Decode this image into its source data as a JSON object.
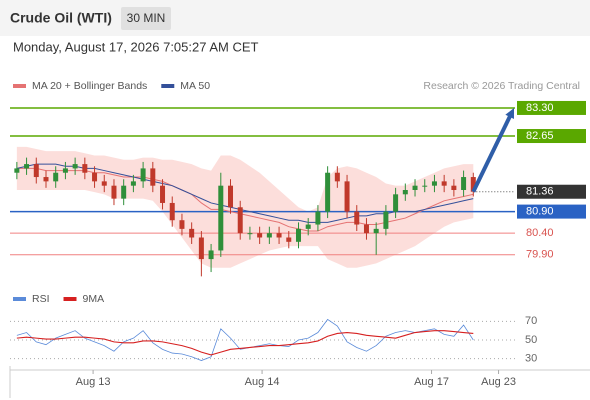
{
  "chart_data": {
    "type": "candlestick",
    "title": "Crude Oil (WTI)",
    "timeframe": "30 MIN",
    "timestamp": "Monday, August 17, 2026 7:05:27 AM CET",
    "credit": "Research © 2026 Trading Central",
    "xlim": [
      0,
      52
    ],
    "xticks": [
      {
        "value": 8.35,
        "label": "Aug 13"
      },
      {
        "value": 25.75,
        "label": "Aug 14"
      },
      {
        "value": 43.2,
        "label": "Aug 17"
      },
      {
        "value": 50.1,
        "label": "Aug 23"
      }
    ],
    "ylim": [
      79.2,
      83.6
    ],
    "up_color": "#2f8f3a",
    "down_color": "#c0392b",
    "candles": {
      "open": [
        81.8,
        81.9,
        82.0,
        81.7,
        81.6,
        81.8,
        81.9,
        82.0,
        81.8,
        81.6,
        81.5,
        81.2,
        81.5,
        81.6,
        81.9,
        81.5,
        81.1,
        80.7,
        80.5,
        80.3,
        79.8,
        80.0,
        81.5,
        81.0,
        80.4,
        80.4,
        80.3,
        80.4,
        80.3,
        80.2,
        80.5,
        80.6,
        80.9,
        81.8,
        81.6,
        80.9,
        80.6,
        80.4,
        80.5,
        80.9,
        81.3,
        81.4,
        81.5,
        81.5,
        81.6,
        81.5,
        81.4,
        81.7
      ],
      "high": [
        82.05,
        82.15,
        82.15,
        81.85,
        81.95,
        82.05,
        82.15,
        82.15,
        81.95,
        81.75,
        81.65,
        81.65,
        81.75,
        82.05,
        82.05,
        81.65,
        81.25,
        80.85,
        80.65,
        80.45,
        80.15,
        81.8,
        81.65,
        81.15,
        80.55,
        80.55,
        80.55,
        80.55,
        80.45,
        80.65,
        80.75,
        81.05,
        81.95,
        81.95,
        81.75,
        81.05,
        80.75,
        80.65,
        81.05,
        81.45,
        81.55,
        81.65,
        81.65,
        81.75,
        81.75,
        81.65,
        81.85,
        81.8
      ],
      "low": [
        81.65,
        81.75,
        81.55,
        81.45,
        81.45,
        81.65,
        81.75,
        81.65,
        81.45,
        81.35,
        81.05,
        81.05,
        81.35,
        81.45,
        81.35,
        80.95,
        80.55,
        80.35,
        80.15,
        79.4,
        79.5,
        79.85,
        80.85,
        80.25,
        80.25,
        80.15,
        80.15,
        80.15,
        80.05,
        80.05,
        80.35,
        80.45,
        80.75,
        81.45,
        80.75,
        80.45,
        80.25,
        79.9,
        80.35,
        80.75,
        81.15,
        81.25,
        81.35,
        81.35,
        81.35,
        81.25,
        81.25,
        81.25
      ],
      "close": [
        81.9,
        82.0,
        81.7,
        81.6,
        81.8,
        81.9,
        82.0,
        81.8,
        81.6,
        81.5,
        81.2,
        81.5,
        81.6,
        81.9,
        81.5,
        81.1,
        80.7,
        80.5,
        80.3,
        79.8,
        80.0,
        81.5,
        81.0,
        80.4,
        80.4,
        80.3,
        80.4,
        80.3,
        80.2,
        80.5,
        80.6,
        80.9,
        81.8,
        81.6,
        80.9,
        80.6,
        80.4,
        80.5,
        80.9,
        81.3,
        81.4,
        81.5,
        81.5,
        81.6,
        81.5,
        81.4,
        81.7,
        81.36
      ]
    },
    "series": [
      {
        "name": "MA 20 + Bollinger Bands",
        "color": "#e57373",
        "band_color": "#fbd3cf",
        "values": [
          81.9,
          81.9,
          81.9,
          81.85,
          81.85,
          81.85,
          81.85,
          81.85,
          81.8,
          81.8,
          81.75,
          81.7,
          81.7,
          81.7,
          81.65,
          81.6,
          81.5,
          81.4,
          81.3,
          81.1,
          80.95,
          80.95,
          80.9,
          80.85,
          80.8,
          80.75,
          80.7,
          80.65,
          80.55,
          80.5,
          80.45,
          80.45,
          80.55,
          80.6,
          80.65,
          80.65,
          80.6,
          80.6,
          80.65,
          80.7,
          80.75,
          80.85,
          80.95,
          81.05,
          81.15,
          81.2,
          81.25,
          81.3
        ],
        "upper": [
          82.4,
          82.4,
          82.35,
          82.3,
          82.3,
          82.3,
          82.3,
          82.25,
          82.2,
          82.2,
          82.15,
          82.1,
          82.1,
          82.15,
          82.15,
          82.1,
          82.1,
          82.05,
          82.0,
          81.9,
          81.85,
          82.2,
          82.2,
          82.1,
          81.95,
          81.8,
          81.6,
          81.4,
          81.2,
          81.0,
          80.9,
          81.0,
          81.7,
          81.9,
          81.95,
          81.9,
          81.8,
          81.7,
          81.55,
          81.5,
          81.5,
          81.6,
          81.7,
          81.8,
          81.9,
          81.95,
          82.0,
          82.0
        ],
        "lower": [
          81.4,
          81.4,
          81.4,
          81.4,
          81.4,
          81.4,
          81.4,
          81.4,
          81.35,
          81.3,
          81.2,
          81.2,
          81.2,
          81.2,
          81.15,
          80.9,
          80.6,
          80.3,
          80.0,
          79.7,
          79.6,
          79.6,
          79.6,
          79.7,
          79.8,
          79.9,
          80.0,
          80.05,
          80.1,
          80.1,
          80.1,
          80.1,
          79.8,
          79.7,
          79.6,
          79.6,
          79.65,
          79.7,
          79.8,
          79.9,
          80.0,
          80.1,
          80.25,
          80.4,
          80.55,
          80.65,
          80.7,
          80.75
        ]
      },
      {
        "name": "MA 50",
        "color": "#34509a",
        "values": [
          81.9,
          81.95,
          82.0,
          82.0,
          82.0,
          81.95,
          81.95,
          81.9,
          81.9,
          81.85,
          81.8,
          81.75,
          81.7,
          81.65,
          81.6,
          81.55,
          81.5,
          81.4,
          81.3,
          81.2,
          81.1,
          81.05,
          81.0,
          80.95,
          80.9,
          80.85,
          80.8,
          80.75,
          80.7,
          80.7,
          80.65,
          80.65,
          80.65,
          80.7,
          80.75,
          80.8,
          80.8,
          80.85,
          80.85,
          80.9,
          80.9,
          80.9,
          80.95,
          81.0,
          81.05,
          81.1,
          81.15,
          81.2
        ]
      }
    ],
    "levels": [
      {
        "value": 83.3,
        "label": "83.30",
        "color": "#5aa800",
        "style": "box"
      },
      {
        "value": 82.65,
        "label": "82.65",
        "color": "#5aa800",
        "style": "box"
      },
      {
        "value": 81.36,
        "label": "81.36",
        "color": "#333333",
        "style": "current"
      },
      {
        "value": 80.9,
        "label": "80.90",
        "color": "#2a62c4",
        "style": "box"
      },
      {
        "value": 80.4,
        "label": "80.40",
        "color": "#f08080",
        "style": "text"
      },
      {
        "value": 79.9,
        "label": "79.90",
        "color": "#f08080",
        "style": "text"
      }
    ],
    "arrow_color": "#2f5ea8",
    "rsi": {
      "ylim": [
        20,
        80
      ],
      "yticks": [
        70,
        50,
        30
      ],
      "series": [
        {
          "name": "RSI",
          "color": "#5b8bd9",
          "values": [
            55,
            58,
            48,
            45,
            52,
            56,
            60,
            52,
            48,
            44,
            38,
            48,
            52,
            60,
            47,
            40,
            36,
            35,
            32,
            28,
            32,
            62,
            52,
            40,
            42,
            44,
            46,
            44,
            43,
            50,
            52,
            58,
            72,
            65,
            48,
            42,
            38,
            44,
            54,
            58,
            60,
            58,
            60,
            62,
            56,
            54,
            66,
            50
          ]
        },
        {
          "name": "9MA",
          "color": "#d62020",
          "values": [
            52,
            53,
            52,
            51,
            51,
            52,
            53,
            53,
            52,
            51,
            48,
            47,
            47,
            49,
            49,
            48,
            46,
            44,
            41,
            37,
            34,
            37,
            40,
            41,
            42,
            43,
            44,
            44,
            45,
            46,
            47,
            49,
            54,
            57,
            58,
            57,
            55,
            54,
            53,
            52,
            55,
            58,
            59,
            60,
            60,
            59,
            58,
            57
          ]
        }
      ]
    }
  }
}
